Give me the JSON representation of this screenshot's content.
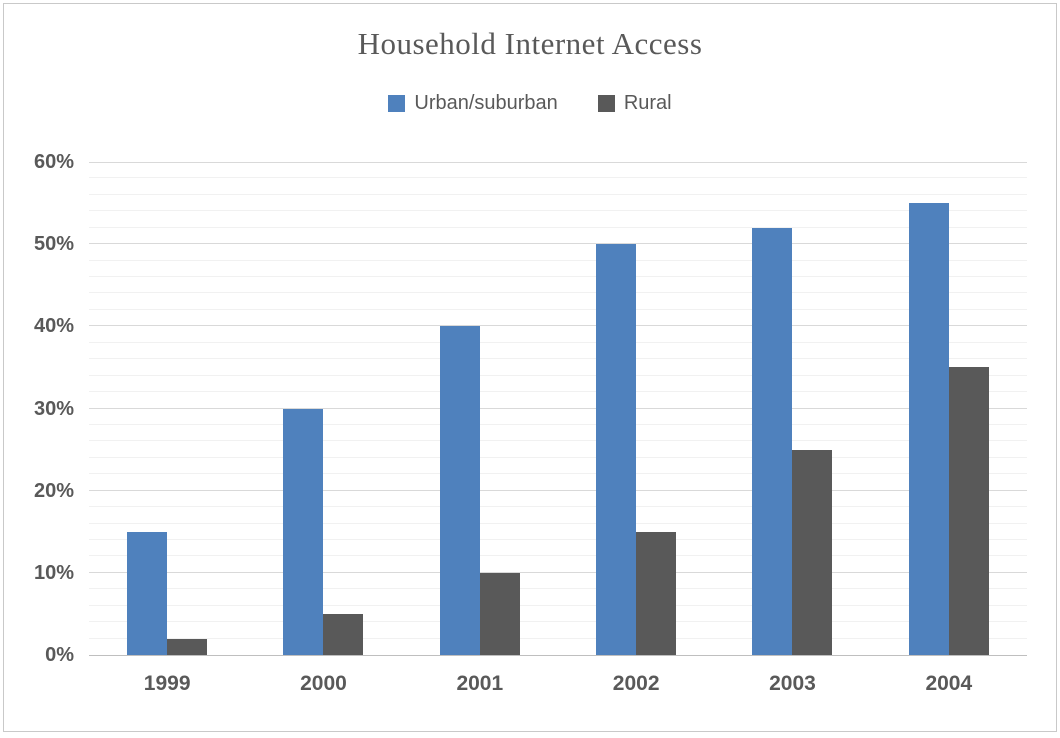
{
  "title": "Household Internet Access",
  "chart_data": {
    "type": "bar",
    "title": "Household Internet Access",
    "categories": [
      "1999",
      "2000",
      "2001",
      "2002",
      "2003",
      "2004"
    ],
    "series": [
      {
        "name": "Urban/suburban",
        "color": "#4F81BD",
        "values": [
          15,
          30,
          40,
          50,
          52,
          55
        ]
      },
      {
        "name": "Rural",
        "color": "#595959",
        "values": [
          2,
          5,
          10,
          15,
          25,
          35
        ]
      }
    ],
    "xlabel": "",
    "ylabel": "",
    "ylim": [
      0,
      60
    ],
    "y_major_step": 10,
    "y_minor_step": 2,
    "y_tick_labels": [
      "0%",
      "10%",
      "20%",
      "30%",
      "40%",
      "50%",
      "60%"
    ],
    "grid": "on",
    "legend_position": "top"
  },
  "colors": {
    "title_text": "#595959",
    "axis_text": "#595959",
    "legend_text": "#595959",
    "major_gridline": "#d9d9d9",
    "minor_gridline": "#f1f1f1",
    "axis_line": "#bfbfbf",
    "frame_border": "#c9c9c9",
    "background": "#ffffff"
  }
}
